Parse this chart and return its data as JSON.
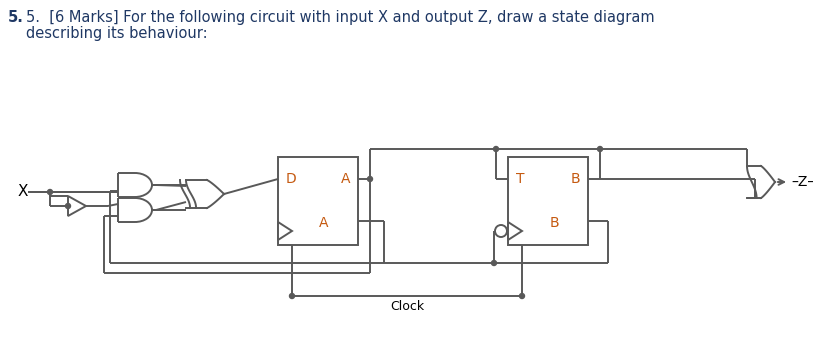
{
  "title_color": "#1f3864",
  "label_color": "#c55a11",
  "bg_color": "#ffffff",
  "line_color": "#595959",
  "figsize": [
    8.13,
    3.43
  ],
  "dpi": 100,
  "title_line1": "5.  [6 Marks] For the following circuit with input X and output Z, draw a state diagram",
  "title_line2": "    describing its behaviour:",
  "clock_label": "Clock",
  "x_label": "X",
  "z_label": "Z–"
}
